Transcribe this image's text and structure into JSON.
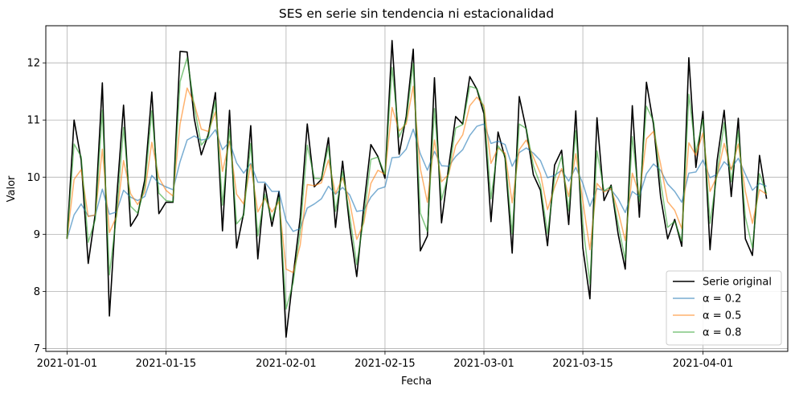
{
  "chart_data": {
    "type": "line",
    "title": "SES en serie sin tendencia ni estacionalidad",
    "xlabel": "Fecha",
    "ylabel": "Valor",
    "x_start": "2021-01-01",
    "x_end": "2021-04-10",
    "xlim": [
      "2020-12-29",
      "2021-04-13"
    ],
    "ylim": [
      6.95,
      12.65
    ],
    "x_ticks": [
      "2021-01-01",
      "2021-01-15",
      "2021-02-01",
      "2021-02-15",
      "2021-03-01",
      "2021-03-15",
      "2021-04-01"
    ],
    "y_ticks": [
      7,
      8,
      9,
      10,
      11,
      12
    ],
    "grid": true,
    "legend_position": "lower-right",
    "series": [
      {
        "name": "Serie original",
        "color": "#000000",
        "values": [
          8.92,
          11.0,
          10.3,
          8.49,
          9.36,
          11.65,
          7.57,
          9.59,
          11.26,
          9.14,
          9.34,
          9.95,
          11.49,
          9.36,
          9.56,
          9.56,
          12.2,
          12.19,
          11.03,
          10.39,
          10.75,
          11.48,
          9.06,
          11.17,
          8.76,
          9.37,
          10.9,
          8.57,
          9.88,
          9.14,
          9.75,
          7.2,
          8.27,
          9.29,
          10.93,
          9.83,
          9.96,
          10.69,
          9.12,
          10.28,
          9.14,
          8.26,
          9.49,
          10.57,
          10.36,
          9.98,
          12.39,
          10.4,
          11.06,
          12.24,
          8.71,
          8.97,
          11.74,
          9.2,
          10.17,
          11.06,
          10.93,
          11.76,
          11.54,
          11.11,
          9.22,
          10.79,
          10.33,
          8.67,
          11.41,
          10.83,
          10.04,
          9.77,
          8.8,
          10.21,
          10.47,
          9.17,
          11.16,
          8.76,
          7.87,
          11.04,
          9.59,
          9.86,
          9.0,
          8.39,
          11.25,
          9.3,
          11.66,
          10.92,
          9.66,
          8.92,
          9.26,
          8.79,
          12.09,
          10.17,
          11.15,
          8.73,
          10.29,
          11.17,
          9.66,
          11.03,
          8.92,
          8.63,
          10.38,
          9.62
        ]
      },
      {
        "name": "α = 0.2",
        "color": "#1f77b4",
        "values": [
          8.92,
          9.34,
          9.53,
          9.32,
          9.33,
          9.79,
          9.35,
          9.39,
          9.77,
          9.65,
          9.59,
          9.66,
          10.03,
          9.89,
          9.83,
          9.78,
          10.27,
          10.65,
          10.72,
          10.65,
          10.67,
          10.83,
          10.48,
          10.62,
          10.25,
          10.07,
          10.24,
          9.91,
          9.91,
          9.75,
          9.75,
          9.24,
          9.05,
          9.1,
          9.46,
          9.53,
          9.62,
          9.84,
          9.7,
          9.82,
          9.69,
          9.4,
          9.42,
          9.65,
          9.79,
          9.83,
          10.34,
          10.35,
          10.49,
          10.84,
          10.41,
          10.12,
          10.45,
          10.2,
          10.19,
          10.36,
          10.48,
          10.73,
          10.89,
          10.93,
          10.59,
          10.63,
          10.57,
          10.19,
          10.43,
          10.51,
          10.42,
          10.29,
          9.99,
          10.03,
          10.12,
          9.93,
          10.17,
          9.89,
          9.49,
          9.8,
          9.76,
          9.78,
          9.62,
          9.38,
          9.75,
          9.66,
          10.06,
          10.23,
          10.12,
          9.88,
          9.75,
          9.56,
          10.07,
          10.09,
          10.3,
          9.99,
          10.05,
          10.27,
          10.15,
          10.33,
          10.05,
          9.77,
          9.89,
          9.84
        ]
      },
      {
        "name": "α = 0.5",
        "color": "#ff7f0e",
        "values": [
          8.92,
          9.96,
          10.13,
          9.31,
          9.34,
          10.49,
          9.03,
          9.31,
          10.29,
          9.71,
          9.52,
          9.74,
          10.61,
          9.99,
          9.77,
          9.67,
          10.93,
          11.56,
          11.29,
          10.84,
          10.8,
          11.14,
          10.1,
          10.63,
          9.7,
          9.53,
          10.22,
          9.39,
          9.63,
          9.39,
          9.57,
          8.39,
          8.33,
          8.81,
          9.87,
          9.85,
          9.9,
          10.3,
          9.71,
          9.99,
          9.57,
          8.91,
          9.2,
          9.89,
          10.12,
          10.05,
          11.22,
          10.81,
          10.93,
          11.59,
          10.15,
          9.56,
          10.65,
          9.92,
          10.05,
          10.55,
          10.74,
          11.25,
          11.4,
          11.25,
          10.24,
          10.51,
          10.42,
          9.55,
          10.48,
          10.65,
          10.35,
          10.06,
          9.43,
          9.82,
          10.15,
          9.66,
          10.41,
          9.58,
          8.73,
          9.89,
          9.74,
          9.8,
          9.4,
          8.89,
          10.07,
          9.69,
          10.67,
          10.8,
          10.23,
          9.57,
          9.42,
          9.1,
          10.6,
          10.38,
          10.77,
          9.75,
          10.02,
          10.59,
          10.13,
          10.58,
          9.75,
          9.19,
          9.78,
          9.7
        ]
      },
      {
        "name": "α = 0.8",
        "color": "#2ca02c",
        "values": [
          8.92,
          10.58,
          10.36,
          8.86,
          9.26,
          11.17,
          8.29,
          9.33,
          10.87,
          9.49,
          9.37,
          9.83,
          11.16,
          9.72,
          9.59,
          9.57,
          11.67,
          12.09,
          11.24,
          10.56,
          10.71,
          11.33,
          9.51,
          10.84,
          9.18,
          9.33,
          10.59,
          8.97,
          9.7,
          9.25,
          9.65,
          7.69,
          8.15,
          9.06,
          10.56,
          9.98,
          9.97,
          10.54,
          9.4,
          10.1,
          9.33,
          8.47,
          9.29,
          10.31,
          10.35,
          10.05,
          11.92,
          10.7,
          10.99,
          11.99,
          9.37,
          9.05,
          11.2,
          9.6,
          10.06,
          10.86,
          10.92,
          11.59,
          11.55,
          11.2,
          9.62,
          10.55,
          10.37,
          9.01,
          10.93,
          10.85,
          10.2,
          9.86,
          9.01,
          9.97,
          10.37,
          9.41,
          10.81,
          9.17,
          8.13,
          10.46,
          9.76,
          9.84,
          9.17,
          8.55,
          10.71,
          9.58,
          11.24,
          10.98,
          9.92,
          9.12,
          9.23,
          8.88,
          11.45,
          10.43,
          11.01,
          9.19,
          10.07,
          10.95,
          9.92,
          10.81,
          9.3,
          8.76,
          10.06,
          9.71
        ]
      }
    ]
  }
}
